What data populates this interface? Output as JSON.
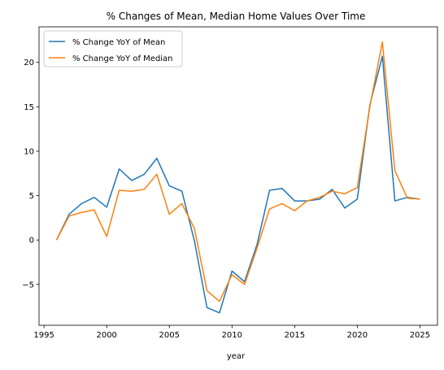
{
  "chart_data": {
    "type": "line",
    "title": "% Changes of Mean, Median Home Values Over Time",
    "xlabel": "year",
    "ylabel": "",
    "xlim": [
      1994.6,
      2026.4
    ],
    "ylim": [
      -9.6,
      24.0
    ],
    "xticks": [
      1995,
      2000,
      2005,
      2010,
      2015,
      2020,
      2025
    ],
    "yticks": [
      -5,
      0,
      5,
      10,
      15,
      20
    ],
    "grid": false,
    "legend": "top-left",
    "x": [
      1996,
      1997,
      1998,
      1999,
      2000,
      2001,
      2002,
      2003,
      2004,
      2005,
      2006,
      2007,
      2008,
      2009,
      2010,
      2011,
      2012,
      2013,
      2014,
      2015,
      2016,
      2017,
      2018,
      2019,
      2020,
      2021,
      2022,
      2023,
      2024,
      2025
    ],
    "series": [
      {
        "name": "% Change YoY of Mean",
        "color": "#1f77b4",
        "values": [
          0.0,
          2.9,
          4.1,
          4.8,
          3.7,
          8.0,
          6.7,
          7.4,
          9.2,
          6.1,
          5.5,
          -0.1,
          -7.6,
          -8.2,
          -3.5,
          -4.7,
          -0.5,
          5.6,
          5.8,
          4.4,
          4.4,
          4.6,
          5.7,
          3.6,
          4.6,
          15.2,
          20.7,
          4.4,
          4.8,
          4.6
        ]
      },
      {
        "name": "% Change YoY of Median",
        "color": "#ff7f0e",
        "values": [
          0.0,
          2.7,
          3.1,
          3.4,
          0.4,
          5.6,
          5.5,
          5.7,
          7.4,
          2.9,
          4.1,
          1.3,
          -5.7,
          -6.9,
          -3.9,
          -5.0,
          -0.9,
          3.5,
          4.1,
          3.3,
          4.4,
          4.8,
          5.5,
          5.2,
          5.9,
          15.0,
          22.3,
          7.8,
          4.7,
          4.6
        ]
      }
    ]
  }
}
